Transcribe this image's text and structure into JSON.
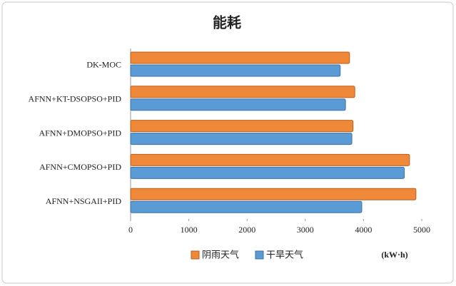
{
  "chart_data": {
    "type": "hbar",
    "title": "能耗",
    "categories": [
      "DK-MOC",
      "AFNN+KT-DSOPSO+PID",
      "AFNN+DMOPSO+PID",
      "AFNN+CMOPSO+PID",
      "AFNN+NSGAII+PID"
    ],
    "series": [
      {
        "name": "阴雨天气",
        "color": "#f0883a",
        "values": [
          3760,
          3850,
          3820,
          4790,
          4900
        ]
      },
      {
        "name": "干旱天气",
        "color": "#5b9bd5",
        "values": [
          3600,
          3690,
          3800,
          4700,
          3970
        ]
      }
    ],
    "xlim": [
      0,
      5000
    ],
    "xticks": [
      0,
      1000,
      2000,
      3000,
      4000,
      5000
    ],
    "x_unit": "(kW·h)",
    "grid": false,
    "legend": "bottom"
  }
}
